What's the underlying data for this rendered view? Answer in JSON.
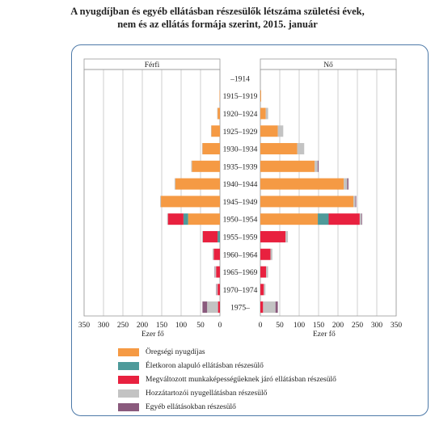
{
  "chart_data": {
    "type": "bar",
    "title_line1": "A nyugdíjban és egyéb ellátásban részesülők létszáma születési évek,",
    "title_line2": "nem és az ellátás formája szerint, 2015. január",
    "panel_left_label": "Férfi",
    "panel_right_label": "Nő",
    "xlabel_left": "Ezer fő",
    "xlabel_right": "Ezer fő",
    "xlim": [
      0,
      350
    ],
    "ticks_left": [
      "350",
      "300",
      "250",
      "200",
      "150",
      "100",
      "50",
      "0"
    ],
    "ticks_right": [
      "0",
      "50",
      "100",
      "150",
      "200",
      "250",
      "300",
      "350"
    ],
    "categories": [
      "–1914",
      "1915–1919",
      "1920–1924",
      "1925–1929",
      "1930–1934",
      "1935–1939",
      "1940–1944",
      "1945–1949",
      "1950–1954",
      "1955–1959",
      "1960–1964",
      "1965–1969",
      "1970–1974",
      "1975–"
    ],
    "colors": [
      "#f59a44",
      "#4e9a9a",
      "#e8213f",
      "#c3c3c3",
      "#8a5a7d"
    ],
    "series": [
      {
        "name": "Öregségi nyugdíjas",
        "male": [
          0,
          1,
          6,
          22,
          45,
          72,
          115,
          152,
          82,
          0,
          0,
          0,
          0,
          0
        ],
        "female": [
          0,
          2,
          14,
          45,
          95,
          140,
          215,
          240,
          148,
          0,
          0,
          0,
          0,
          0
        ]
      },
      {
        "name": "Életkoron alapuló ellátásban részesülő",
        "male": [
          0,
          0,
          0,
          0,
          0,
          0,
          0,
          0,
          12,
          6,
          0,
          0,
          0,
          0
        ],
        "female": [
          0,
          0,
          0,
          0,
          0,
          0,
          0,
          0,
          28,
          0,
          0,
          0,
          0,
          0
        ]
      },
      {
        "name": "Megváltozott munkaképességűeknek járó ellátásban részesülő",
        "male": [
          0,
          0,
          0,
          0,
          0,
          0,
          0,
          0,
          40,
          38,
          16,
          10,
          6,
          5
        ],
        "female": [
          0,
          0,
          0,
          0,
          0,
          0,
          0,
          0,
          80,
          65,
          26,
          15,
          9,
          7
        ]
      },
      {
        "name": "Hozzátartozói nyugellátásban részesülő",
        "male": [
          0,
          0,
          1,
          1,
          1,
          2,
          2,
          2,
          2,
          2,
          3,
          3,
          3,
          28
        ],
        "female": [
          0,
          0,
          6,
          14,
          18,
          8,
          9,
          5,
          4,
          6,
          5,
          5,
          4,
          32
        ]
      },
      {
        "name": "Egyéb ellátásokban részesülő",
        "male": [
          0,
          0,
          0,
          0,
          0,
          0,
          0,
          0,
          0,
          0,
          0,
          1,
          1,
          12
        ],
        "female": [
          0,
          0,
          0,
          0,
          0,
          2,
          3,
          2,
          2,
          0,
          0,
          0,
          0,
          6
        ]
      }
    ]
  }
}
